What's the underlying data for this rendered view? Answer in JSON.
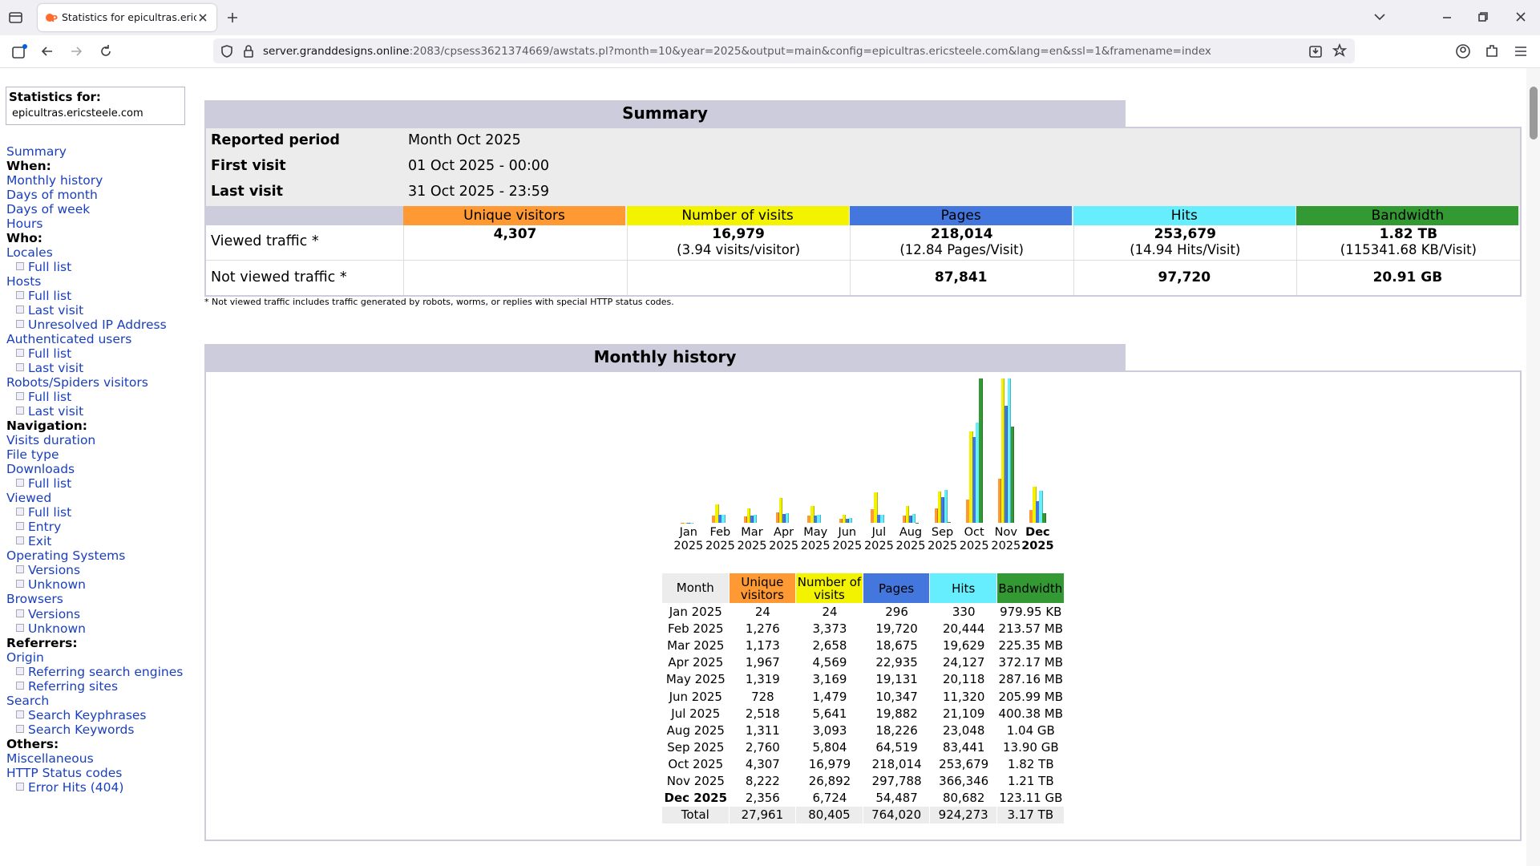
{
  "browser": {
    "tab_title": "Statistics for epicultras.ericsteel",
    "url_host": "server.granddesigns.online",
    "url_rest": ":2083/cpsess3621374669/awstats.pl?month=10&year=2025&output=main&config=epicultras.ericsteele.com&lang=en&ssl=1&framename=index"
  },
  "sidebar": {
    "stats_label": "Statistics for:",
    "site": "epicultras.ericsteele.com",
    "items": [
      {
        "text": "Summary",
        "kind": "link"
      },
      {
        "text": "When:",
        "kind": "heading"
      },
      {
        "text": "Monthly history",
        "kind": "link"
      },
      {
        "text": "Days of month",
        "kind": "link"
      },
      {
        "text": "Days of week",
        "kind": "link"
      },
      {
        "text": "Hours",
        "kind": "link"
      },
      {
        "text": "Who:",
        "kind": "heading"
      },
      {
        "text": "Locales",
        "kind": "link"
      },
      {
        "text": "Full list",
        "kind": "sub"
      },
      {
        "text": "Hosts",
        "kind": "link"
      },
      {
        "text": "Full list",
        "kind": "sub"
      },
      {
        "text": "Last visit",
        "kind": "sub"
      },
      {
        "text": "Unresolved IP Address",
        "kind": "sub"
      },
      {
        "text": "Authenticated users",
        "kind": "link"
      },
      {
        "text": "Full list",
        "kind": "sub"
      },
      {
        "text": "Last visit",
        "kind": "sub"
      },
      {
        "text": "Robots/Spiders visitors",
        "kind": "link"
      },
      {
        "text": "Full list",
        "kind": "sub"
      },
      {
        "text": "Last visit",
        "kind": "sub"
      },
      {
        "text": "Navigation:",
        "kind": "heading"
      },
      {
        "text": "Visits duration",
        "kind": "link"
      },
      {
        "text": "File type",
        "kind": "link"
      },
      {
        "text": "Downloads",
        "kind": "link"
      },
      {
        "text": "Full list",
        "kind": "sub"
      },
      {
        "text": "Viewed",
        "kind": "link"
      },
      {
        "text": "Full list",
        "kind": "sub"
      },
      {
        "text": "Entry",
        "kind": "sub"
      },
      {
        "text": "Exit",
        "kind": "sub"
      },
      {
        "text": "Operating Systems",
        "kind": "link"
      },
      {
        "text": "Versions",
        "kind": "sub"
      },
      {
        "text": "Unknown",
        "kind": "sub"
      },
      {
        "text": "Browsers",
        "kind": "link"
      },
      {
        "text": "Versions",
        "kind": "sub"
      },
      {
        "text": "Unknown",
        "kind": "sub"
      },
      {
        "text": "Referrers:",
        "kind": "heading"
      },
      {
        "text": "Origin",
        "kind": "link"
      },
      {
        "text": "Referring search engines",
        "kind": "sub"
      },
      {
        "text": "Referring sites",
        "kind": "sub"
      },
      {
        "text": "Search",
        "kind": "link"
      },
      {
        "text": "Search Keyphrases",
        "kind": "sub"
      },
      {
        "text": "Search Keywords",
        "kind": "sub"
      },
      {
        "text": "Others:",
        "kind": "heading"
      },
      {
        "text": "Miscellaneous",
        "kind": "link"
      },
      {
        "text": "HTTP Status codes",
        "kind": "link"
      },
      {
        "text": "Error Hits (404)",
        "kind": "sub"
      }
    ]
  },
  "summary": {
    "title": "Summary",
    "rows": [
      [
        "Reported period",
        "Month Oct 2025"
      ],
      [
        "First visit",
        "01 Oct 2025 - 00:00"
      ],
      [
        "Last visit",
        "31 Oct 2025 - 23:59"
      ]
    ],
    "viewed": {
      "label": "Viewed traffic *",
      "cells": [
        {
          "main": "4,307"
        },
        {
          "main": "16,979",
          "sub": "(3.94 visits/visitor)"
        },
        {
          "main": "218,014",
          "sub": "(12.84 Pages/Visit)"
        },
        {
          "main": "253,679",
          "sub": "(14.94 Hits/Visit)"
        },
        {
          "main": "1.82 TB",
          "sub": "(115341.68 KB/Visit)"
        }
      ]
    },
    "not_viewed": {
      "label": "Not viewed traffic *",
      "cells": [
        "87,841",
        "97,720",
        "20.91 GB"
      ]
    },
    "note": "* Not viewed traffic includes traffic generated by robots, worms, or replies with special HTTP status codes."
  },
  "monthly": {
    "title": "Monthly history",
    "month_header": "Month",
    "total_label": "Total",
    "totals": [
      "27,961",
      "80,405",
      "764,020",
      "924,273",
      "3.17 TB"
    ]
  },
  "chart_data": {
    "type": "bar",
    "bold_category": 11,
    "categories": [
      "Jan 2025",
      "Feb 2025",
      "Mar 2025",
      "Apr 2025",
      "May 2025",
      "Jun 2025",
      "Jul 2025",
      "Aug 2025",
      "Sep 2025",
      "Oct 2025",
      "Nov 2025",
      "Dec 2025"
    ],
    "series": [
      {
        "name": "Unique visitors",
        "color": "#ff9933",
        "values": [
          24,
          1276,
          1173,
          1967,
          1319,
          728,
          2518,
          1311,
          2760,
          4307,
          8222,
          2356
        ],
        "value_labels": [
          "24",
          "1,276",
          "1,173",
          "1,967",
          "1,319",
          "728",
          "2,518",
          "1,311",
          "2,760",
          "4,307",
          "8,222",
          "2,356"
        ]
      },
      {
        "name": "Number of visits",
        "color": "#f3f300",
        "values": [
          24,
          3373,
          2658,
          4569,
          3169,
          1479,
          5641,
          3093,
          5804,
          16979,
          26892,
          6724
        ],
        "value_labels": [
          "24",
          "3,373",
          "2,658",
          "4,569",
          "3,169",
          "1,479",
          "5,641",
          "3,093",
          "5,804",
          "16,979",
          "26,892",
          "6,724"
        ]
      },
      {
        "name": "Pages",
        "color": "#4477dd",
        "values": [
          296,
          19720,
          18675,
          22935,
          19131,
          10347,
          19882,
          18226,
          64519,
          218014,
          297788,
          54487
        ],
        "value_labels": [
          "296",
          "19,720",
          "18,675",
          "22,935",
          "19,131",
          "10,347",
          "19,882",
          "18,226",
          "64,519",
          "218,014",
          "297,788",
          "54,487"
        ]
      },
      {
        "name": "Hits",
        "color": "#66eeff",
        "values": [
          330,
          20444,
          19629,
          24127,
          20118,
          11320,
          21109,
          23048,
          83441,
          253679,
          366346,
          80682
        ],
        "value_labels": [
          "330",
          "20,444",
          "19,629",
          "24,127",
          "20,118",
          "11,320",
          "21,109",
          "23,048",
          "83,441",
          "253,679",
          "366,346",
          "80,682"
        ]
      },
      {
        "name": "Bandwidth",
        "color": "#339933",
        "values": [
          0.95698,
          213.57,
          225.35,
          372.17,
          287.16,
          205.99,
          400.38,
          1064.96,
          14233.6,
          1908408.32,
          1268776.96,
          126064.64
        ],
        "value_labels": [
          "979.95 KB",
          "213.57 MB",
          "225.35 MB",
          "372.17 MB",
          "287.16 MB",
          "205.99 MB",
          "400.38 MB",
          "1.04 GB",
          "13.90 GB",
          "1.82 TB",
          "1.21 TB",
          "123.11 GB"
        ]
      }
    ]
  }
}
